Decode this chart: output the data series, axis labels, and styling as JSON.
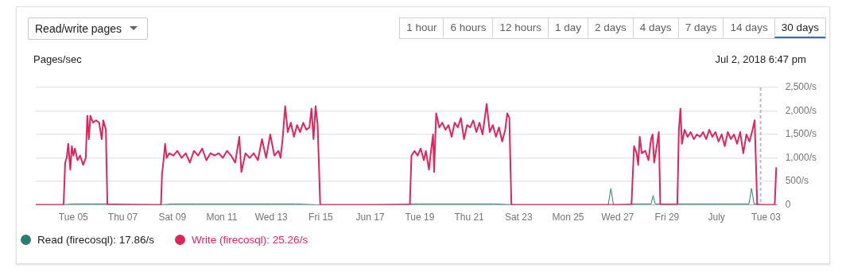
{
  "chart_data": {
    "type": "line",
    "title": "Read/write pages",
    "ylabel": "Pages/sec",
    "annotations": [
      "1 hour",
      "6 hours",
      "12 hours",
      "1 day",
      "2 days",
      "4 days",
      "7 days",
      "14 days",
      "30 days"
    ],
    "xlim": [
      "2018-06-03T11:30",
      "2018-07-03T11:00"
    ],
    "xticks": [
      {
        "value": "2018-06-05",
        "label": "Tue 05"
      },
      {
        "value": "2018-06-07",
        "label": "Thu 07"
      },
      {
        "value": "2018-06-09",
        "label": "Sat 09"
      },
      {
        "value": "2018-06-11",
        "label": "Mon 11"
      },
      {
        "value": "2018-06-13",
        "label": "Wed 13"
      },
      {
        "value": "2018-06-15",
        "label": "Fri 15"
      },
      {
        "value": "2018-06-17",
        "label": "Jun 17"
      },
      {
        "value": "2018-06-19",
        "label": "Tue 19"
      },
      {
        "value": "2018-06-21",
        "label": "Thu 21"
      },
      {
        "value": "2018-06-23",
        "label": "Sat 23"
      },
      {
        "value": "2018-06-25",
        "label": "Mon 25"
      },
      {
        "value": "2018-06-27",
        "label": "Wed 27"
      },
      {
        "value": "2018-06-29",
        "label": "Fri 29"
      },
      {
        "value": "2018-07-01",
        "label": "July"
      },
      {
        "value": "2018-07-03",
        "label": "Tue 03"
      }
    ],
    "ylim": [
      0,
      2500
    ],
    "yticks": [
      0,
      {
        "value": 500,
        "label": "500/s"
      },
      {
        "value": 1000,
        "label": "1,000/s"
      },
      {
        "value": 1500,
        "label": "1,500/s"
      },
      {
        "value": 2000,
        "label": "2,000/s"
      },
      {
        "value": 2500,
        "label": "2,500/s"
      }
    ],
    "grid": "y",
    "legend": "bottom left",
    "marker": "none",
    "ref_lines": [
      {
        "axis": "x",
        "value": "2018-07-02T18:47",
        "label": "Jul 2, 2018 6:47 pm",
        "color": "#bdbdbd",
        "line_style": "dashed"
      }
    ],
    "series": [
      {
        "name": "Read (firecosql): 17.86/s",
        "color": "#2e7d6b",
        "x": [
          "2018-06-03T11:30",
          "2018-06-04T12:00",
          "2018-06-05T00:00",
          "2018-06-05T18:00",
          "2018-06-06T12:00",
          "2018-06-08T12:00",
          "2018-06-09T00:00",
          "2018-06-10T00:00",
          "2018-06-11T00:00",
          "2018-06-12T00:00",
          "2018-06-13T00:00",
          "2018-06-14T00:00",
          "2018-06-15T00:00",
          "2018-06-17T00:00",
          "2018-06-19T00:00",
          "2018-06-20T00:00",
          "2018-06-21T00:00",
          "2018-06-22T00:00",
          "2018-06-23T00:00",
          "2018-06-25T00:00",
          "2018-06-26T15:00",
          "2018-06-26T17:30",
          "2018-06-26T20:00",
          "2018-06-27T18:00",
          "2018-06-28T08:30",
          "2018-06-28T10:30",
          "2018-06-28T12:30",
          "2018-06-29T18:00",
          "2018-07-01T00:00",
          "2018-07-02T07:30",
          "2018-07-02T10:00",
          "2018-07-02T12:30",
          "2018-07-03T00:00",
          "2018-07-03T11:00"
        ],
        "values": [
          0,
          0,
          20,
          20,
          20,
          0,
          20,
          20,
          20,
          20,
          20,
          20,
          0,
          0,
          20,
          20,
          20,
          20,
          0,
          0,
          0,
          350,
          0,
          20,
          20,
          200,
          20,
          20,
          20,
          20,
          350,
          20,
          0,
          0
        ]
      },
      {
        "name": "Write (firecosql): 25.26/s",
        "color": "#e0245e",
        "x": [
          "2018-06-03T11:30",
          "2018-06-04T14:30",
          "2018-06-04T16:00",
          "2018-06-04T17:30",
          "2018-06-04T19:00",
          "2018-06-04T21:00",
          "2018-06-04T22:30",
          "2018-06-05T00:00",
          "2018-06-05T01:30",
          "2018-06-05T04:00",
          "2018-06-05T06:30",
          "2018-06-05T09:30",
          "2018-06-05T12:00",
          "2018-06-05T13:30",
          "2018-06-05T15:00",
          "2018-06-05T16:30",
          "2018-06-05T19:00",
          "2018-06-05T22:00",
          "2018-06-06T01:00",
          "2018-06-06T03:30",
          "2018-06-06T05:00",
          "2018-06-06T07:30",
          "2018-06-06T09:00",
          "2018-06-08T13:00",
          "2018-06-08T14:00",
          "2018-06-08T15:30",
          "2018-06-08T17:00",
          "2018-06-08T18:30",
          "2018-06-08T21:00",
          "2018-06-09T01:00",
          "2018-06-09T05:00",
          "2018-06-09T09:00",
          "2018-06-09T13:00",
          "2018-06-09T17:00",
          "2018-06-09T21:00",
          "2018-06-10T01:00",
          "2018-06-10T05:00",
          "2018-06-10T09:00",
          "2018-06-10T13:00",
          "2018-06-10T17:00",
          "2018-06-10T21:00",
          "2018-06-11T01:00",
          "2018-06-11T05:00",
          "2018-06-11T09:00",
          "2018-06-11T13:00",
          "2018-06-11T17:00",
          "2018-06-11T19:00",
          "2018-06-11T23:00",
          "2018-06-12T03:00",
          "2018-06-12T07:00",
          "2018-06-12T11:00",
          "2018-06-12T15:00",
          "2018-06-12T19:00",
          "2018-06-12T23:00",
          "2018-06-13T03:00",
          "2018-06-13T07:00",
          "2018-06-13T09:00",
          "2018-06-13T11:00",
          "2018-06-13T13:30",
          "2018-06-13T16:00",
          "2018-06-13T19:00",
          "2018-06-13T22:00",
          "2018-06-14T01:00",
          "2018-06-14T04:00",
          "2018-06-14T07:00",
          "2018-06-14T10:00",
          "2018-06-14T13:00",
          "2018-06-14T15:00",
          "2018-06-14T17:00",
          "2018-06-14T19:00",
          "2018-06-14T21:00",
          "2018-06-14T23:30",
          "2018-06-18T14:30",
          "2018-06-18T16:00",
          "2018-06-18T19:00",
          "2018-06-18T22:00",
          "2018-06-19T01:00",
          "2018-06-19T04:00",
          "2018-06-19T06:00",
          "2018-06-19T09:00",
          "2018-06-19T11:00",
          "2018-06-19T13:00",
          "2018-06-19T14:00",
          "2018-06-19T16:00",
          "2018-06-19T19:00",
          "2018-06-19T22:00",
          "2018-06-20T01:00",
          "2018-06-20T04:00",
          "2018-06-20T07:00",
          "2018-06-20T10:00",
          "2018-06-20T13:00",
          "2018-06-20T16:00",
          "2018-06-20T19:00",
          "2018-06-20T22:00",
          "2018-06-21T01:00",
          "2018-06-21T04:00",
          "2018-06-21T07:00",
          "2018-06-21T10:00",
          "2018-06-21T13:00",
          "2018-06-21T17:00",
          "2018-06-21T20:00",
          "2018-06-21T23:00",
          "2018-06-22T02:00",
          "2018-06-22T05:00",
          "2018-06-22T08:00",
          "2018-06-22T11:00",
          "2018-06-22T13:00",
          "2018-06-22T15:00",
          "2018-06-22T17:00",
          "2018-06-27T13:30",
          "2018-06-27T16:00",
          "2018-06-27T18:30",
          "2018-06-27T20:00",
          "2018-06-27T21:30",
          "2018-06-27T23:30",
          "2018-06-28T03:00",
          "2018-06-28T06:00",
          "2018-06-28T08:30",
          "2018-06-28T10:00",
          "2018-06-28T11:30",
          "2018-06-28T14:00",
          "2018-06-28T16:00",
          "2018-06-28T17:30",
          "2018-06-29T10:00",
          "2018-06-29T11:30",
          "2018-06-29T13:00",
          "2018-06-29T14:30",
          "2018-06-29T17:00",
          "2018-06-29T20:00",
          "2018-06-29T23:00",
          "2018-06-30T02:00",
          "2018-06-30T05:00",
          "2018-06-30T08:00",
          "2018-06-30T11:00",
          "2018-06-30T14:00",
          "2018-06-30T17:00",
          "2018-06-30T20:00",
          "2018-06-30T23:00",
          "2018-07-01T02:00",
          "2018-07-01T05:00",
          "2018-07-01T08:00",
          "2018-07-01T11:00",
          "2018-07-01T14:00",
          "2018-07-01T17:00",
          "2018-07-01T20:00",
          "2018-07-01T23:00",
          "2018-07-02T02:00",
          "2018-07-02T05:00",
          "2018-07-02T08:00",
          "2018-07-02T11:00",
          "2018-07-02T13:00",
          "2018-07-02T15:30",
          "2018-07-03T08:30",
          "2018-07-03T10:00"
        ],
        "values": [
          0,
          0,
          900,
          1000,
          1300,
          750,
          1250,
          1050,
          1200,
          950,
          1050,
          850,
          1000,
          1900,
          1400,
          1900,
          1750,
          1800,
          1750,
          1400,
          1800,
          1600,
          0,
          0,
          650,
          950,
          1300,
          1000,
          1100,
          1050,
          1150,
          1000,
          1100,
          900,
          1150,
          1050,
          1200,
          950,
          1100,
          1050,
          1100,
          1000,
          1150,
          1050,
          900,
          1450,
          700,
          1100,
          1000,
          1100,
          950,
          1400,
          1000,
          1500,
          1050,
          1150,
          1000,
          1400,
          2100,
          1550,
          1750,
          1450,
          1700,
          1550,
          1750,
          1600,
          1650,
          2050,
          1400,
          2100,
          1700,
          0,
          0,
          1050,
          1150,
          1050,
          1200,
          950,
          1150,
          750,
          1150,
          1500,
          700,
          1950,
          1650,
          1750,
          1600,
          1700,
          1450,
          1750,
          1650,
          1850,
          1400,
          1700,
          1650,
          1800,
          1550,
          1750,
          1500,
          2150,
          1550,
          1700,
          1450,
          1650,
          1350,
          1600,
          1950,
          1850,
          0,
          0,
          1250,
          1100,
          850,
          1450,
          1100,
          1150,
          950,
          1400,
          1500,
          900,
          1250,
          1550,
          0,
          0,
          1600,
          2050,
          1300,
          1600,
          1450,
          1550,
          1400,
          1500,
          1450,
          1550,
          1400,
          1600,
          1450,
          1550,
          1350,
          1500,
          1250,
          1550,
          1400,
          1500,
          1300,
          1550,
          1100,
          1500,
          1350,
          1600,
          1800,
          0,
          0,
          800
        ]
      }
    ]
  }
}
